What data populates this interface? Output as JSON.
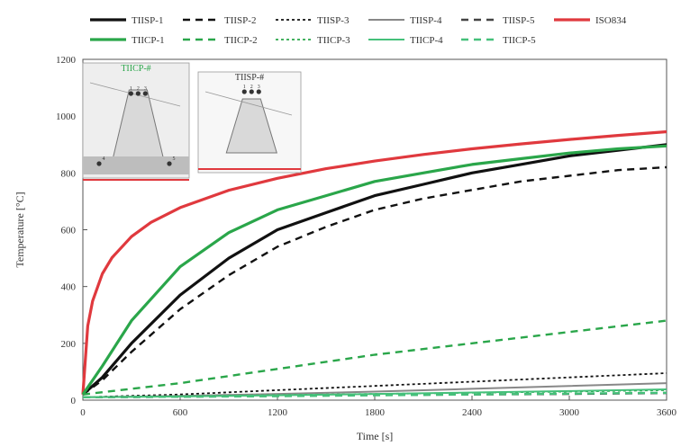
{
  "chart_data": {
    "type": "line",
    "title": "",
    "xlabel": "Time [s]",
    "ylabel": "Temperature [°C]",
    "xlim": [
      0,
      3600
    ],
    "ylim": [
      0,
      1200
    ],
    "xticks": [
      0,
      600,
      1200,
      1800,
      2400,
      3000,
      3600
    ],
    "yticks": [
      0,
      200,
      400,
      600,
      800,
      1000,
      1200
    ],
    "grid": false,
    "legend_position": "top",
    "series": [
      {
        "name": "TIISP-1",
        "color": "#111111",
        "style": "solid-thick",
        "x": [
          0,
          120,
          300,
          600,
          900,
          1200,
          1500,
          1800,
          2100,
          2400,
          2700,
          3000,
          3300,
          3600
        ],
        "y": [
          20,
          80,
          200,
          370,
          500,
          600,
          660,
          720,
          760,
          800,
          830,
          860,
          880,
          900
        ]
      },
      {
        "name": "TIISP-2",
        "color": "#111111",
        "style": "dash",
        "x": [
          0,
          120,
          300,
          600,
          900,
          1200,
          1500,
          1800,
          2100,
          2400,
          2700,
          3000,
          3300,
          3600
        ],
        "y": [
          20,
          70,
          170,
          320,
          440,
          540,
          610,
          670,
          710,
          740,
          770,
          790,
          810,
          820
        ]
      },
      {
        "name": "TIISP-3",
        "color": "#111111",
        "style": "dot",
        "x": [
          0,
          600,
          1200,
          1800,
          2400,
          3000,
          3600
        ],
        "y": [
          10,
          20,
          35,
          50,
          65,
          80,
          95
        ]
      },
      {
        "name": "TIISP-4",
        "color": "#888888",
        "style": "solid",
        "x": [
          0,
          600,
          1200,
          1800,
          2400,
          3000,
          3600
        ],
        "y": [
          10,
          15,
          22,
          30,
          40,
          50,
          60
        ]
      },
      {
        "name": "TIISP-5",
        "color": "#444444",
        "style": "dash",
        "x": [
          0,
          600,
          1200,
          1800,
          2400,
          3000,
          3600
        ],
        "y": [
          10,
          12,
          15,
          18,
          20,
          22,
          25
        ]
      },
      {
        "name": "ISO834",
        "color": "#e0393e",
        "style": "solid-thick",
        "x": [
          0,
          30,
          60,
          120,
          180,
          300,
          420,
          600,
          900,
          1200,
          1500,
          1800,
          2100,
          2400,
          2700,
          3000,
          3300,
          3600
        ],
        "y": [
          20,
          261,
          349,
          445,
          502,
          576,
          626,
          678,
          739,
          781,
          815,
          842,
          865,
          885,
          902,
          918,
          932,
          945
        ]
      },
      {
        "name": "TIICP-1",
        "color": "#2aa64a",
        "style": "solid-thick",
        "x": [
          0,
          120,
          300,
          600,
          900,
          1200,
          1500,
          1800,
          2100,
          2400,
          2700,
          3000,
          3300,
          3600
        ],
        "y": [
          20,
          120,
          280,
          470,
          590,
          670,
          720,
          770,
          800,
          830,
          850,
          870,
          885,
          895
        ]
      },
      {
        "name": "TIICP-2",
        "color": "#2aa64a",
        "style": "dash",
        "x": [
          0,
          600,
          1200,
          1800,
          2400,
          3000,
          3600
        ],
        "y": [
          20,
          60,
          110,
          160,
          200,
          240,
          280
        ]
      },
      {
        "name": "TIICP-3",
        "color": "#2aa64a",
        "style": "dot",
        "x": [
          0,
          600,
          1200,
          1800,
          2400,
          3000,
          3600
        ],
        "y": [
          10,
          14,
          18,
          22,
          26,
          30,
          35
        ]
      },
      {
        "name": "TIICP-4",
        "color": "#45c07a",
        "style": "solid",
        "x": [
          0,
          600,
          1200,
          1800,
          2400,
          3000,
          3600
        ],
        "y": [
          10,
          13,
          17,
          22,
          27,
          32,
          38
        ]
      },
      {
        "name": "TIICP-5",
        "color": "#45c07a",
        "style": "dash",
        "x": [
          0,
          600,
          1200,
          1800,
          2400,
          3000,
          3600
        ],
        "y": [
          10,
          12,
          14,
          17,
          20,
          23,
          26
        ]
      }
    ],
    "insets": [
      {
        "title": "TIICP-#",
        "color": "#2aa64a",
        "labels": [
          "1",
          "2",
          "3",
          "4",
          "5"
        ]
      },
      {
        "title": "TIISP-#",
        "color": "#333333",
        "labels": [
          "1",
          "2",
          "3"
        ]
      }
    ]
  }
}
